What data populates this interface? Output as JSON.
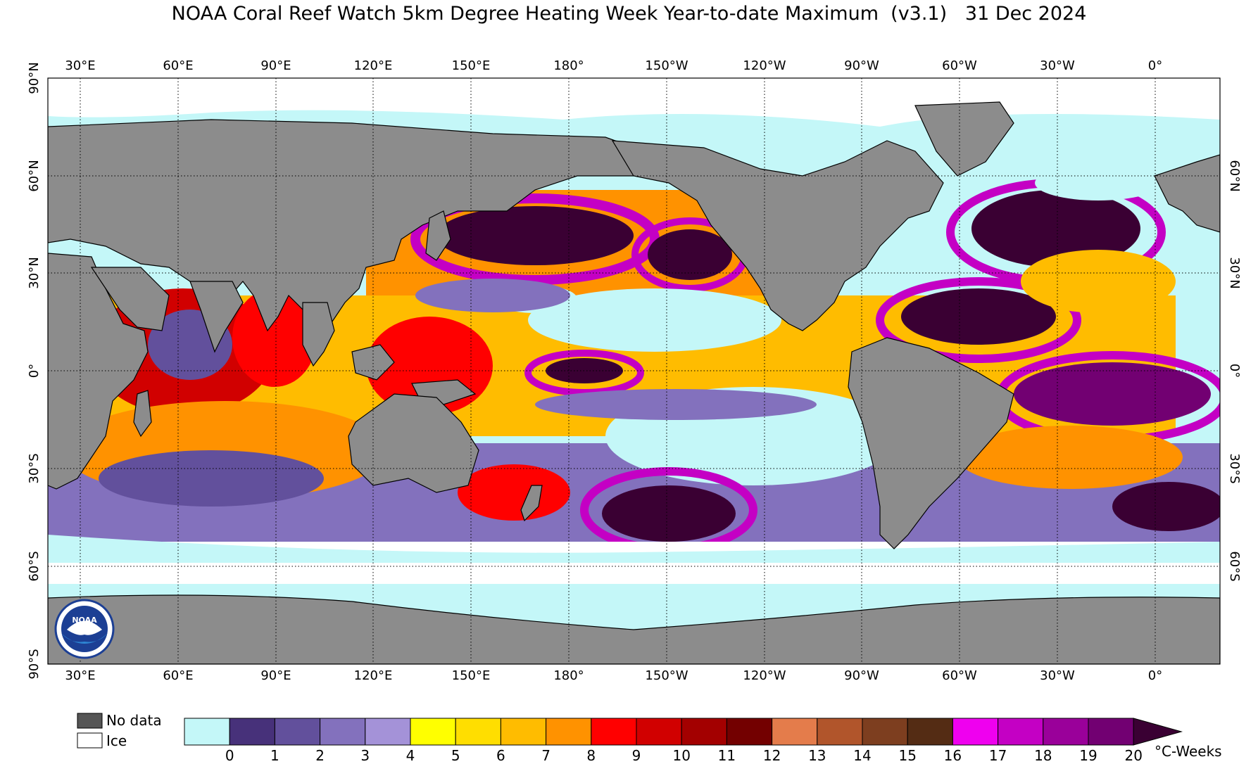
{
  "title": "NOAA Coral Reef Watch 5km Degree Heating Week Year-to-date Maximum  (v3.1)   31 Dec 2024",
  "lon_labels": [
    "30°E",
    "60°E",
    "90°E",
    "120°E",
    "150°E",
    "180°",
    "150°W",
    "120°W",
    "90°W",
    "60°W",
    "30°W",
    "0°"
  ],
  "lat_labels_left": [
    "90°N",
    "60°N",
    "30°N",
    "0°",
    "30°S",
    "60°S",
    "90°S"
  ],
  "lat_labels_right": [
    "60°N",
    "30°N",
    "0°",
    "30°S",
    "60°S"
  ],
  "logo_text": "NOAA",
  "legend": {
    "no_data_label": "No data",
    "ice_label": "Ice",
    "unit": "°C-Weeks",
    "ticks": [
      "0",
      "1",
      "2",
      "3",
      "4",
      "5",
      "6",
      "7",
      "8",
      "9",
      "10",
      "11",
      "12",
      "13",
      "14",
      "15",
      "16",
      "17",
      "18",
      "19",
      "20"
    ],
    "colors": [
      "#c4f7f8",
      "#47317a",
      "#62509c",
      "#8371bd",
      "#a492d8",
      "#ffff00",
      "#ffde00",
      "#ffbc00",
      "#ff9200",
      "#ff0000",
      "#d10000",
      "#a30000",
      "#730000",
      "#e47c4b",
      "#b1552b",
      "#7d3e1f",
      "#542c14",
      "#ef00ef",
      "#c400c4",
      "#9a009a",
      "#720072"
    ],
    "arrow_color": "#3a0033",
    "no_data_color": "#555555",
    "ice_color": "#ffffff"
  },
  "map_colors": {
    "land": "#8c8c8c",
    "ice": "#ffffff",
    "ocean_low": "#c4f7f8"
  }
}
